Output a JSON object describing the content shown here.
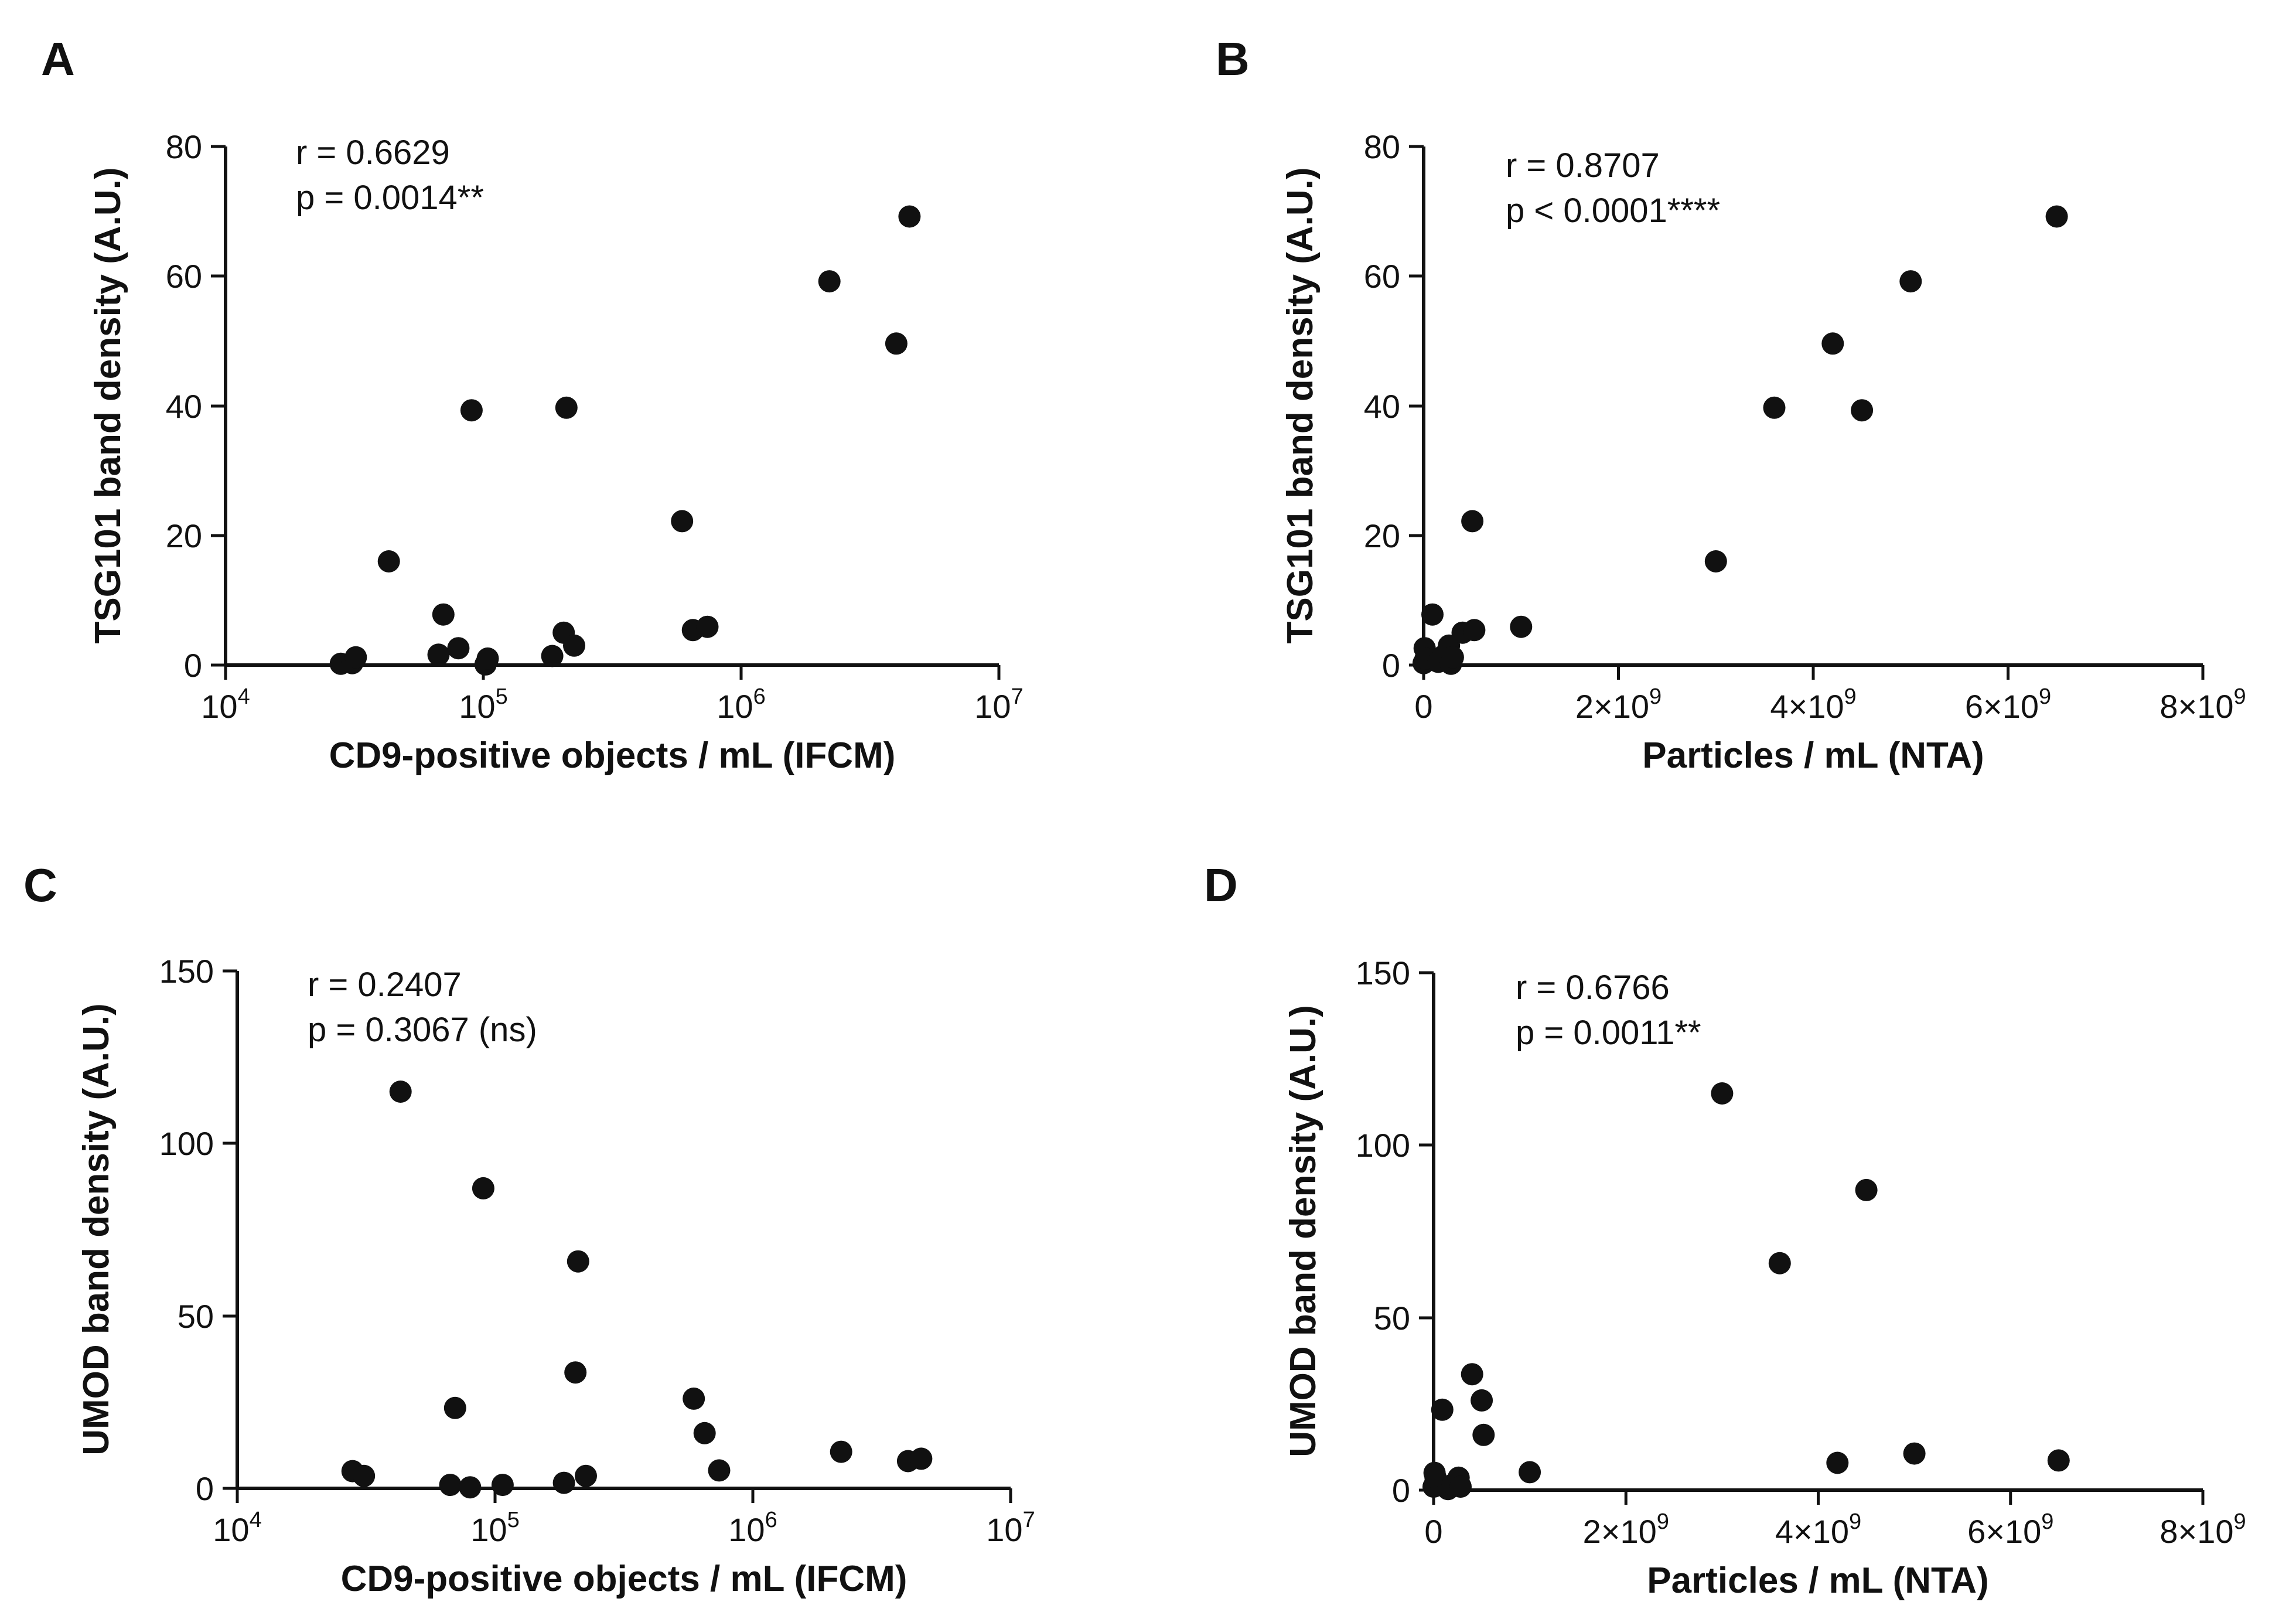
{
  "chart_data": [
    {
      "panel": "A",
      "type": "scatter",
      "xscale": "log",
      "xlabel": "CD9-positive objects / mL (IFCM)",
      "ylabel": "TSG101 band density (A.U.)",
      "xlim": [
        10000,
        10000000
      ],
      "ylim": [
        0,
        80
      ],
      "yticks": [
        "0",
        "20",
        "40",
        "60",
        "80"
      ],
      "xticks": [
        {
          "base": "10",
          "exp": "4"
        },
        {
          "base": "10",
          "exp": "5"
        },
        {
          "base": "10",
          "exp": "6"
        },
        {
          "base": "10",
          "exp": "7"
        }
      ],
      "annotations": [
        "r = 0.6629",
        "p = 0.0014**"
      ],
      "points": [
        {
          "x": 28000,
          "y": 0.2
        },
        {
          "x": 31000,
          "y": 0.3
        },
        {
          "x": 32000,
          "y": 1.2
        },
        {
          "x": 43000,
          "y": 16
        },
        {
          "x": 67000,
          "y": 1.6
        },
        {
          "x": 70000,
          "y": 7.8
        },
        {
          "x": 80000,
          "y": 2.6
        },
        {
          "x": 90000,
          "y": 39.3
        },
        {
          "x": 102000,
          "y": 0.1
        },
        {
          "x": 104000,
          "y": 1.0
        },
        {
          "x": 185000,
          "y": 1.4
        },
        {
          "x": 205000,
          "y": 5.0
        },
        {
          "x": 210000,
          "y": 39.7
        },
        {
          "x": 225000,
          "y": 3.0
        },
        {
          "x": 590000,
          "y": 22.2
        },
        {
          "x": 650000,
          "y": 5.4
        },
        {
          "x": 740000,
          "y": 5.9
        },
        {
          "x": 2200000,
          "y": 59.2
        },
        {
          "x": 4000000,
          "y": 49.6
        },
        {
          "x": 4500000,
          "y": 69.2
        }
      ]
    },
    {
      "panel": "B",
      "type": "scatter",
      "xscale": "linear",
      "xlabel": "Particles / mL (NTA)",
      "ylabel": "TSG101 band density (A.U.)",
      "xlim": [
        0,
        8000000000
      ],
      "ylim": [
        0,
        80
      ],
      "yticks": [
        "0",
        "20",
        "40",
        "60",
        "80"
      ],
      "xticks": [
        {
          "value": 0,
          "label": "0"
        },
        {
          "value": 2000000000,
          "label": "2×10",
          "exp": "9"
        },
        {
          "value": 4000000000,
          "label": "4×10",
          "exp": "9"
        },
        {
          "value": 6000000000,
          "label": "6×10",
          "exp": "9"
        },
        {
          "value": 8000000000,
          "label": "8×10",
          "exp": "9"
        }
      ],
      "annotations": [
        "r = 0.8707",
        "p < 0.0001****"
      ],
      "points": [
        {
          "x": 0,
          "y": 0.3
        },
        {
          "x": 10000000,
          "y": 2.6
        },
        {
          "x": 20000000,
          "y": 1.0
        },
        {
          "x": 90000000,
          "y": 7.8
        },
        {
          "x": 150000000,
          "y": 0.5
        },
        {
          "x": 200000000,
          "y": 1.4
        },
        {
          "x": 260000000,
          "y": 3.0
        },
        {
          "x": 280000000,
          "y": 0.2
        },
        {
          "x": 300000000,
          "y": 1.2
        },
        {
          "x": 400000000,
          "y": 5.0
        },
        {
          "x": 500000000,
          "y": 22.2
        },
        {
          "x": 520000000,
          "y": 5.4
        },
        {
          "x": 1000000000,
          "y": 5.9
        },
        {
          "x": 3000000000,
          "y": 16
        },
        {
          "x": 3600000000,
          "y": 39.7
        },
        {
          "x": 4200000000,
          "y": 49.6
        },
        {
          "x": 4500000000,
          "y": 39.3
        },
        {
          "x": 5000000000,
          "y": 59.2
        },
        {
          "x": 6500000000,
          "y": 69.2
        }
      ]
    },
    {
      "panel": "C",
      "type": "scatter",
      "xscale": "log",
      "xlabel": "CD9-positive objects / mL (IFCM)",
      "ylabel": "UMOD band density (A.U.)",
      "xlim": [
        10000,
        10000000
      ],
      "ylim": [
        0,
        150
      ],
      "yticks": [
        "0",
        "50",
        "100",
        "150"
      ],
      "xticks": [
        {
          "base": "10",
          "exp": "4"
        },
        {
          "base": "10",
          "exp": "5"
        },
        {
          "base": "10",
          "exp": "6"
        },
        {
          "base": "10",
          "exp": "7"
        }
      ],
      "annotations": [
        "r = 0.2407",
        "p = 0.3067 (ns)"
      ],
      "points": [
        {
          "x": 28000,
          "y": 5.0
        },
        {
          "x": 31000,
          "y": 3.6
        },
        {
          "x": 43000,
          "y": 115
        },
        {
          "x": 67000,
          "y": 1.0
        },
        {
          "x": 70000,
          "y": 23.3
        },
        {
          "x": 80000,
          "y": 0.3
        },
        {
          "x": 90000,
          "y": 87
        },
        {
          "x": 107000,
          "y": 1.0
        },
        {
          "x": 185000,
          "y": 1.6
        },
        {
          "x": 205000,
          "y": 33.6
        },
        {
          "x": 210000,
          "y": 65.8
        },
        {
          "x": 225000,
          "y": 3.6
        },
        {
          "x": 590000,
          "y": 26.0
        },
        {
          "x": 650000,
          "y": 16.0
        },
        {
          "x": 740000,
          "y": 5.2
        },
        {
          "x": 2200000,
          "y": 10.6
        },
        {
          "x": 4000000,
          "y": 7.9
        },
        {
          "x": 4500000,
          "y": 8.6
        }
      ]
    },
    {
      "panel": "D",
      "type": "scatter",
      "xscale": "linear",
      "xlabel": "Particles / mL (NTA)",
      "ylabel": "UMOD band density (A.U.)",
      "xlim": [
        0,
        8000000000
      ],
      "ylim": [
        0,
        150
      ],
      "yticks": [
        "0",
        "50",
        "100",
        "150"
      ],
      "xticks": [
        {
          "value": 0,
          "label": "0"
        },
        {
          "value": 2000000000,
          "label": "2×10",
          "exp": "9"
        },
        {
          "value": 4000000000,
          "label": "4×10",
          "exp": "9"
        },
        {
          "value": 6000000000,
          "label": "6×10",
          "exp": "9"
        },
        {
          "value": 8000000000,
          "label": "8×10",
          "exp": "9"
        }
      ],
      "annotations": [
        "r = 0.6766",
        "p = 0.0011**"
      ],
      "points": [
        {
          "x": 0,
          "y": 1.0
        },
        {
          "x": 10000000,
          "y": 5.0
        },
        {
          "x": 20000000,
          "y": 3.6
        },
        {
          "x": 90000000,
          "y": 23.3
        },
        {
          "x": 150000000,
          "y": 0.3
        },
        {
          "x": 200000000,
          "y": 1.6
        },
        {
          "x": 260000000,
          "y": 3.6
        },
        {
          "x": 280000000,
          "y": 1.0
        },
        {
          "x": 400000000,
          "y": 33.6
        },
        {
          "x": 500000000,
          "y": 26.0
        },
        {
          "x": 520000000,
          "y": 16.0
        },
        {
          "x": 1000000000,
          "y": 5.2
        },
        {
          "x": 3000000000,
          "y": 115
        },
        {
          "x": 3600000000,
          "y": 65.8
        },
        {
          "x": 4200000000,
          "y": 7.9
        },
        {
          "x": 4500000000,
          "y": 87
        },
        {
          "x": 5000000000,
          "y": 10.6
        },
        {
          "x": 6500000000,
          "y": 8.6
        }
      ]
    }
  ]
}
